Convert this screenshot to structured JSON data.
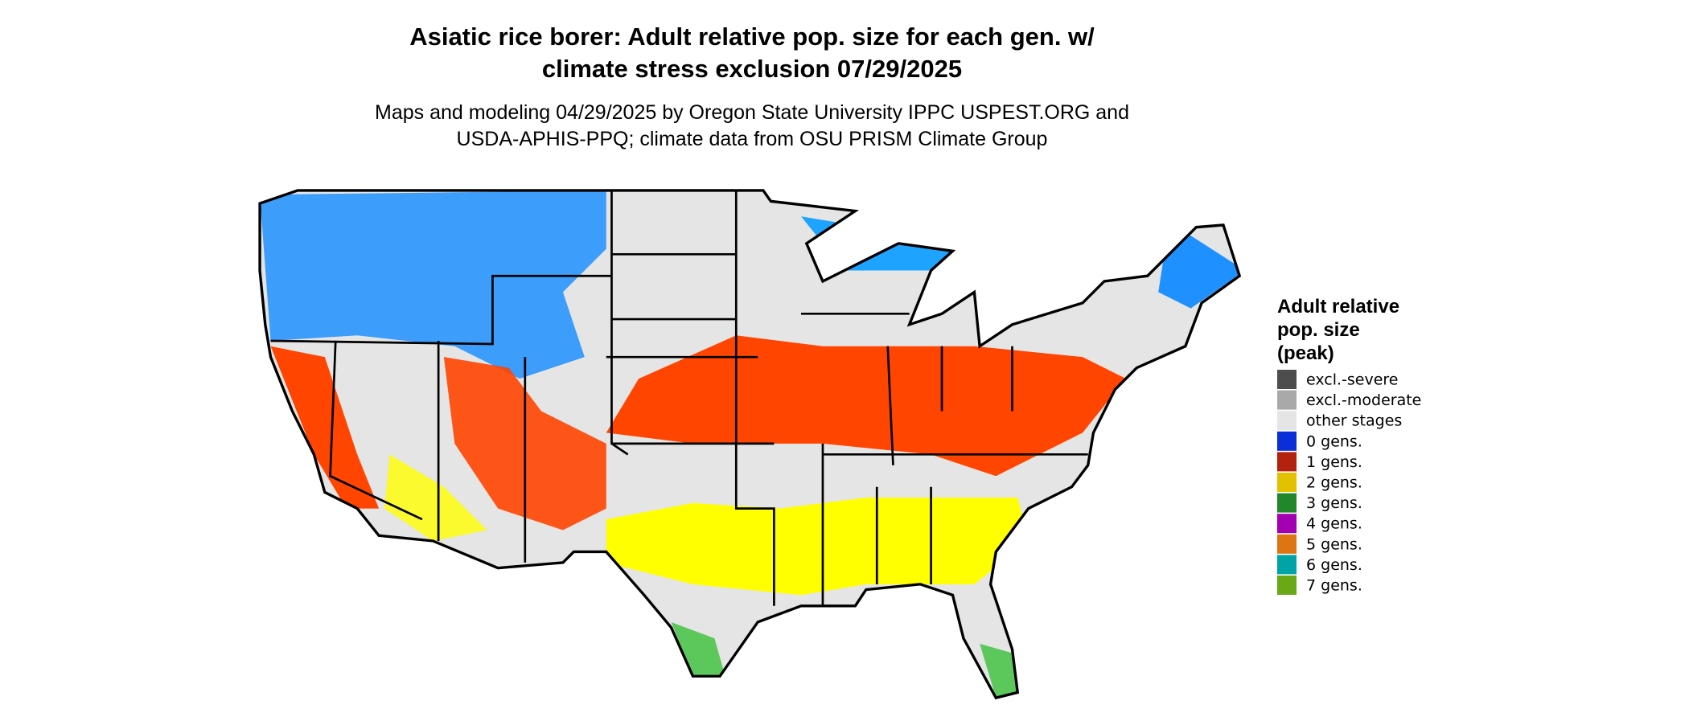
{
  "header": {
    "title": [
      "Asiatic rice borer: Adult relative pop. size for each gen. w/",
      "climate stress exclusion 07/29/2025"
    ],
    "subtitle": [
      "Maps and modeling 04/29/2025 by Oregon State University IPPC USPEST.ORG and",
      "USDA-APHIS-PPQ; climate data from OSU PRISM Climate Group"
    ]
  },
  "legend": {
    "title": [
      "Adult relative",
      "pop. size",
      "(peak)"
    ],
    "items": [
      {
        "label": "excl.-severe",
        "color": "#4d4d4d"
      },
      {
        "label": "excl.-moderate",
        "color": "#a9a9a9"
      },
      {
        "label": "other stages",
        "color": "#e5e5e5"
      },
      {
        "label": "0 gens.",
        "color": "#0a2fd8"
      },
      {
        "label": "1 gens.",
        "color": "#b2220f"
      },
      {
        "label": "2 gens.",
        "color": "#e2c200"
      },
      {
        "label": "3 gens.",
        "color": "#22862a"
      },
      {
        "label": "4 gens.",
        "color": "#a200b0"
      },
      {
        "label": "5 gens.",
        "color": "#df7413"
      },
      {
        "label": "6 gens.",
        "color": "#00a3a6"
      },
      {
        "label": "7 gens.",
        "color": "#6aa916"
      }
    ]
  }
}
